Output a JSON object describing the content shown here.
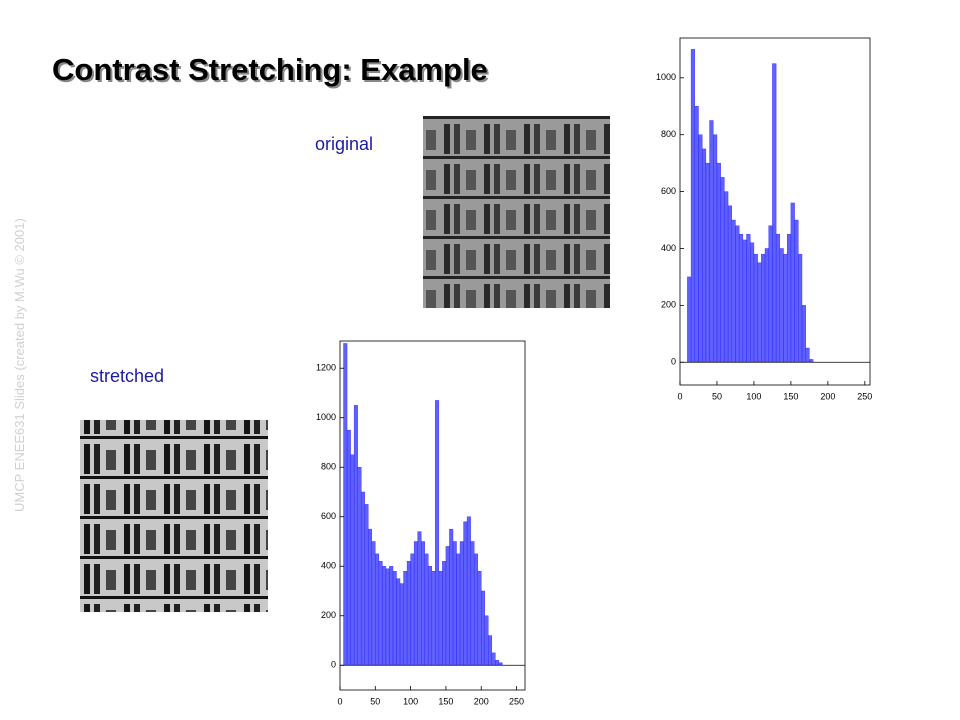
{
  "title": "Contrast Stretching: Example",
  "watermark": "UMCP ENEE631 Slides (created by M.Wu © 2001)",
  "labels": {
    "original": "original",
    "stretched": "stretched"
  },
  "chart_data": [
    {
      "type": "histogram",
      "color": "#2b2bff",
      "bins": [
        0,
        5,
        10,
        15,
        20,
        25,
        30,
        35,
        40,
        45,
        50,
        55,
        60,
        65,
        70,
        75,
        80,
        85,
        90,
        95,
        100,
        105,
        110,
        115,
        120,
        125,
        130,
        135,
        140,
        145,
        150,
        155,
        160,
        165,
        170,
        175,
        180,
        185,
        190,
        195,
        200,
        205,
        210,
        215,
        220,
        225,
        230,
        235,
        240,
        245,
        250,
        255
      ],
      "values": [
        0,
        0,
        300,
        1100,
        900,
        800,
        750,
        700,
        850,
        800,
        700,
        650,
        600,
        550,
        500,
        480,
        450,
        430,
        450,
        420,
        380,
        350,
        380,
        400,
        480,
        1050,
        450,
        400,
        380,
        450,
        560,
        500,
        380,
        200,
        50,
        10,
        0,
        0,
        0,
        0,
        0,
        0,
        0,
        0,
        0,
        0,
        0,
        0,
        0,
        0,
        0
      ],
      "xlim": [
        0,
        257
      ],
      "ylim": [
        -80,
        1140
      ],
      "xticks": [
        0,
        50,
        100,
        150,
        200,
        250
      ],
      "yticks": [
        0,
        200,
        400,
        600,
        800,
        1000
      ]
    },
    {
      "type": "histogram",
      "color": "#2b2bff",
      "bins": [
        0,
        5,
        10,
        15,
        20,
        25,
        30,
        35,
        40,
        45,
        50,
        55,
        60,
        65,
        70,
        75,
        80,
        85,
        90,
        95,
        100,
        105,
        110,
        115,
        120,
        125,
        130,
        135,
        140,
        145,
        150,
        155,
        160,
        165,
        170,
        175,
        180,
        185,
        190,
        195,
        200,
        205,
        210,
        215,
        220,
        225,
        230,
        235,
        240,
        245,
        250,
        255
      ],
      "values": [
        0,
        1300,
        950,
        850,
        1050,
        800,
        700,
        650,
        550,
        500,
        450,
        420,
        400,
        390,
        400,
        380,
        350,
        330,
        380,
        420,
        450,
        500,
        540,
        500,
        450,
        400,
        380,
        1070,
        380,
        420,
        480,
        550,
        500,
        450,
        500,
        580,
        600,
        500,
        450,
        380,
        300,
        200,
        120,
        50,
        20,
        10,
        0,
        0,
        0,
        0,
        0
      ],
      "xlim": [
        0,
        262
      ],
      "ylim": [
        -100,
        1310
      ],
      "xticks": [
        0,
        50,
        100,
        150,
        200,
        250
      ],
      "yticks": [
        0,
        200,
        400,
        600,
        800,
        1000,
        1200
      ]
    }
  ]
}
